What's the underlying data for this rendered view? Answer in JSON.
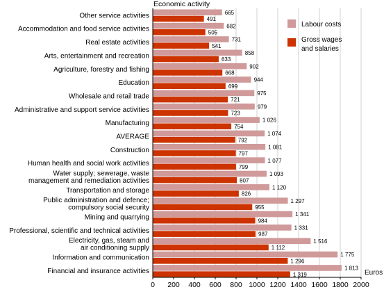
{
  "chart_data": {
    "type": "bar",
    "orientation": "horizontal",
    "title": "Economic activity",
    "xlabel": "Euros",
    "xlim": [
      0,
      2000
    ],
    "xticks": [
      0,
      200,
      400,
      600,
      800,
      1000,
      1200,
      1400,
      1600,
      1800,
      2000
    ],
    "grid": true,
    "legend_position": "top-right",
    "categories": [
      [
        "Other service activities"
      ],
      [
        "Accommodation and food service activities"
      ],
      [
        "Real estate activities"
      ],
      [
        "Arts, entertainment and recreation"
      ],
      [
        "Agriculture, forestry and fishing"
      ],
      [
        "Education"
      ],
      [
        "Wholesale and retail trade"
      ],
      [
        "Administrative and support service activities"
      ],
      [
        "Manufacturing"
      ],
      [
        "AVERAGE"
      ],
      [
        "Construction"
      ],
      [
        "Human health and social work activities"
      ],
      [
        "Water supply; sewerage, waste",
        "management and remediation activities"
      ],
      [
        "Transportation and storage"
      ],
      [
        "Public administration and defence;",
        "compulsory social security"
      ],
      [
        "Mining and quarrying"
      ],
      [
        "Professional, scientific and technical activities"
      ],
      [
        "Electricity, gas, steam and",
        "air conditioning supply"
      ],
      [
        "Information and communication"
      ],
      [
        "Financial and insurance activities"
      ]
    ],
    "series": [
      {
        "name": "Labour costs",
        "color": "#d09a9a",
        "values": [
          665,
          682,
          731,
          858,
          902,
          944,
          975,
          979,
          1026,
          1074,
          1081,
          1077,
          1093,
          1120,
          1297,
          1341,
          1331,
          1516,
          1775,
          1813
        ],
        "labels": [
          "665",
          "682",
          "731",
          "858",
          "902",
          "944",
          "975",
          "979",
          "1 026",
          "1 074",
          "1 081",
          "1 077",
          "1 093",
          "1 120",
          "1 297",
          "1 341",
          "1 331",
          "1 516",
          "1 775",
          "1 813"
        ]
      },
      {
        "name": "Gross wages and salaries",
        "legend_lines": [
          "Gross wages",
          "and salaries"
        ],
        "color": "#cc3300",
        "values": [
          491,
          505,
          541,
          633,
          668,
          699,
          721,
          723,
          754,
          792,
          797,
          799,
          807,
          826,
          955,
          984,
          987,
          1112,
          1296,
          1319
        ],
        "labels": [
          "491",
          "505",
          "541",
          "633",
          "668",
          "699",
          "721",
          "723",
          "754",
          "792",
          "797",
          "799",
          "807",
          "826",
          "955",
          "984",
          "987",
          "1 112",
          "1 296",
          "1 319"
        ]
      }
    ]
  }
}
